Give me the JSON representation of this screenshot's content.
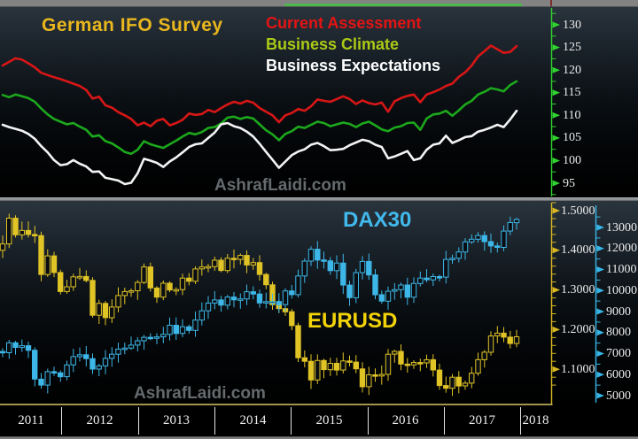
{
  "scrollbar": {
    "track_color": "#828282",
    "thumb_color": "#4cb84c"
  },
  "ifo_panel": {
    "title": "German IFO Survey",
    "title_color": "#eab71d",
    "watermark": "AshrafLaidi.com",
    "legend": [
      {
        "label": "Current Assessment",
        "color": "#e31414"
      },
      {
        "label": "Business Climate",
        "color": "#abc916"
      },
      {
        "label": "Business Expectations",
        "color": "#ffffff"
      }
    ],
    "y_axis": {
      "color": "#2fd42f",
      "labels": [
        "130",
        "125",
        "120",
        "115",
        "110",
        "105",
        "100",
        "95"
      ]
    }
  },
  "price_panel": {
    "dax_label": "DAX30",
    "dax_label_color": "#41b9ec",
    "eurusd_label": "EURUSD",
    "eurusd_label_color": "#f2d307",
    "watermark": "AshrafLaidi.com",
    "eur_axis": {
      "color": "#d9b821",
      "labels": [
        "1.5000",
        "1.4000",
        "1.3000",
        "1.2000",
        "1.1000"
      ]
    },
    "dax_axis": {
      "color": "#37b7e8",
      "labels": [
        "13000",
        "12000",
        "11000",
        "10000",
        "9000",
        "8000",
        "7000",
        "6000",
        "5000"
      ]
    }
  },
  "time_axis": {
    "years": [
      "2011",
      "2012",
      "2013",
      "2014",
      "2015",
      "2016",
      "2017",
      "2018"
    ]
  },
  "chart_data": [
    {
      "type": "line",
      "title": "German IFO Survey",
      "x_start": "2011-03",
      "x_end": "2017-11",
      "x_freq": "monthly",
      "ylim": [
        92.5,
        132.5
      ],
      "y_ticks": [
        95,
        100,
        105,
        110,
        115,
        120,
        125,
        130
      ],
      "legend_position": "top-right",
      "grid": false,
      "series": [
        {
          "name": "Current Assessment",
          "color": "#d81616",
          "values": [
            121.0,
            121.8,
            122.6,
            122.3,
            121.5,
            120.6,
            119.4,
            118.9,
            118.4,
            118.0,
            117.5,
            117.0,
            116.5,
            115.6,
            113.7,
            114.1,
            112.2,
            111.7,
            110.7,
            110.0,
            109.2,
            107.8,
            108.4,
            107.6,
            108.8,
            109.2,
            107.8,
            108.3,
            109.0,
            110.4,
            110.1,
            110.3,
            111.2,
            110.7,
            111.6,
            112.4,
            113.0,
            112.6,
            113.2,
            112.8,
            111.6,
            110.8,
            110.0,
            108.5,
            110.0,
            110.5,
            111.4,
            111.0,
            112.0,
            113.5,
            113.2,
            113.0,
            113.6,
            114.2,
            113.6,
            112.5,
            113.3,
            112.7,
            112.4,
            112.8,
            110.8,
            113.1,
            113.8,
            114.3,
            114.6,
            112.9,
            114.6,
            115.1,
            115.7,
            116.5,
            117.0,
            118.5,
            119.5,
            121.0,
            123.0,
            124.2,
            125.4,
            124.6,
            123.8,
            124.0,
            125.3
          ]
        },
        {
          "name": "Business Climate",
          "color": "#1ca81c",
          "values": [
            114.5,
            114.0,
            114.6,
            114.2,
            113.8,
            113.0,
            111.5,
            110.2,
            109.2,
            108.6,
            108.0,
            108.3,
            107.5,
            106.8,
            105.3,
            105.6,
            104.3,
            103.8,
            102.9,
            101.9,
            101.5,
            102.4,
            104.3,
            103.6,
            103.2,
            102.8,
            103.6,
            104.4,
            105.3,
            106.1,
            105.8,
            106.3,
            107.2,
            107.4,
            108.2,
            109.5,
            109.7,
            109.2,
            109.6,
            109.3,
            108.0,
            106.7,
            105.8,
            104.5,
            105.9,
            106.5,
            107.5,
            107.2,
            107.9,
            108.6,
            108.3,
            107.6,
            108.0,
            108.4,
            108.1,
            107.4,
            108.2,
            108.6,
            107.8,
            106.9,
            106.5,
            107.3,
            107.6,
            108.3,
            108.4,
            106.8,
            109.3,
            110.2,
            110.4,
            111.0,
            109.9,
            111.1,
            112.4,
            113.2,
            114.6,
            115.2,
            116.0,
            115.7,
            115.3,
            116.7,
            117.5
          ]
        },
        {
          "name": "Business Expectations",
          "color": "#f4f4f4",
          "values": [
            107.9,
            107.4,
            107.0,
            106.6,
            105.9,
            104.8,
            103.2,
            101.8,
            100.1,
            99.0,
            99.2,
            100.1,
            99.3,
            98.7,
            97.5,
            97.6,
            96.2,
            95.9,
            95.6,
            94.8,
            95.1,
            97.2,
            100.4,
            100.0,
            99.5,
            98.6,
            99.8,
            100.7,
            101.8,
            103.0,
            103.6,
            103.8,
            105.0,
            106.2,
            108.0,
            108.3,
            107.6,
            107.2,
            106.4,
            105.3,
            103.7,
            101.9,
            100.2,
            98.4,
            99.8,
            101.2,
            102.0,
            102.5,
            103.5,
            103.9,
            103.2,
            102.3,
            102.4,
            102.6,
            103.4,
            104.0,
            104.6,
            104.3,
            103.5,
            103.0,
            100.5,
            100.9,
            101.5,
            102.1,
            100.1,
            100.5,
            102.4,
            103.5,
            103.8,
            105.5,
            103.9,
            104.5,
            105.2,
            105.4,
            106.4,
            106.8,
            107.3,
            107.9,
            107.4,
            109.1,
            111.0
          ]
        }
      ]
    },
    {
      "type": "candlestick",
      "x_start": "2011-03",
      "x_end": "2017-11",
      "x_freq": "monthly",
      "x_year_labels": [
        2011,
        2012,
        2013,
        2014,
        2015,
        2016,
        2017,
        2018
      ],
      "series": [
        {
          "name": "EURUSD",
          "color": "#e0c325",
          "first_open": 1.4,
          "y_ticks": [
            1.5,
            1.4,
            1.3,
            1.2,
            1.1
          ],
          "closes": [
            1.416,
            1.481,
            1.439,
            1.45,
            1.44,
            1.437,
            1.339,
            1.386,
            1.344,
            1.296,
            1.308,
            1.333,
            1.334,
            1.324,
            1.236,
            1.266,
            1.23,
            1.257,
            1.286,
            1.296,
            1.298,
            1.319,
            1.358,
            1.305,
            1.282,
            1.317,
            1.3,
            1.301,
            1.33,
            1.322,
            1.353,
            1.358,
            1.359,
            1.375,
            1.349,
            1.38,
            1.377,
            1.387,
            1.363,
            1.369,
            1.339,
            1.313,
            1.263,
            1.253,
            1.245,
            1.21,
            1.129,
            1.12,
            1.073,
            1.122,
            1.099,
            1.115,
            1.098,
            1.121,
            1.118,
            1.101,
            1.056,
            1.086,
            1.083,
            1.087,
            1.138,
            1.145,
            1.113,
            1.111,
            1.117,
            1.116,
            1.124,
            1.098,
            1.059,
            1.052,
            1.08,
            1.058,
            1.065,
            1.09,
            1.124,
            1.143,
            1.184,
            1.191,
            1.181,
            1.165,
            1.182
          ]
        },
        {
          "name": "DAX30",
          "color": "#3db7e8",
          "first_open": 7100,
          "y_ticks": [
            13000,
            12000,
            11000,
            10000,
            9000,
            8000,
            7000,
            6000,
            5000
          ],
          "closes": [
            7041,
            7514,
            7293,
            7376,
            7159,
            5785,
            5502,
            6141,
            6088,
            5898,
            6459,
            6856,
            6947,
            6761,
            6264,
            6416,
            6772,
            6971,
            7216,
            7260,
            7405,
            7612,
            7776,
            7741,
            7795,
            7914,
            8349,
            7959,
            8276,
            8103,
            8594,
            9034,
            9405,
            9552,
            9306,
            9692,
            9556,
            9603,
            9943,
            9833,
            9407,
            9470,
            9474,
            9327,
            9981,
            9806,
            10694,
            11402,
            11966,
            11454,
            11414,
            10945,
            11309,
            10259,
            9660,
            10850,
            11382,
            10743,
            9798,
            9495,
            9966,
            10039,
            10263,
            9680,
            10337,
            10593,
            10511,
            10665,
            10640,
            11481,
            11535,
            11834,
            12313,
            12438,
            12615,
            12325,
            12118,
            12056,
            12829,
            13230,
            13380
          ]
        }
      ]
    }
  ]
}
